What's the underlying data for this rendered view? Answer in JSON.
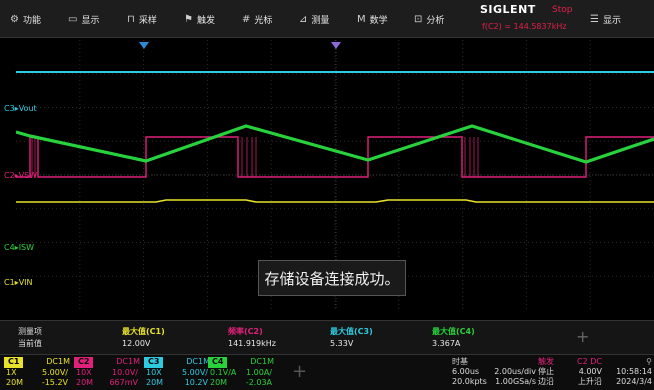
{
  "menu": [
    {
      "label": "功能",
      "icon": "gear-icon",
      "glyph": "⚙"
    },
    {
      "label": "显示",
      "icon": "display-icon",
      "glyph": "▭"
    },
    {
      "label": "采样",
      "icon": "sample-icon",
      "glyph": "⊓"
    },
    {
      "label": "触发",
      "icon": "flag-icon",
      "glyph": "⚑"
    },
    {
      "label": "光标",
      "icon": "cursor-icon",
      "glyph": "#"
    },
    {
      "label": "测量",
      "icon": "measure-icon",
      "glyph": "⊿"
    },
    {
      "label": "数学",
      "icon": "math-icon",
      "glyph": "M"
    },
    {
      "label": "分析",
      "icon": "analysis-icon",
      "glyph": "⊡"
    },
    {
      "label": "显示",
      "icon": "list-icon",
      "glyph": "☰"
    }
  ],
  "brand": {
    "name": "SIGLENT",
    "state": "Stop",
    "freq": "f(C2) = 144.5837kHz"
  },
  "channels_on_screen": [
    {
      "label": "C3▸Vout",
      "color": "#2ecbe0"
    },
    {
      "label": "C2▸VSW",
      "color": "#e0207a"
    },
    {
      "label": "C4▸ISW",
      "color": "#27d23c"
    },
    {
      "label": "C1▸VIN",
      "color": "#e8e22a"
    }
  ],
  "toast": "存储设备连接成功。",
  "measure": {
    "title": "测量项",
    "row_label": "当前值",
    "items": [
      {
        "name": "最大值(C1)",
        "value": "12.00V",
        "color": "#e8e22a"
      },
      {
        "name": "频率(C2)",
        "value": "141.919kHz",
        "color": "#e0207a"
      },
      {
        "name": "最大值(C3)",
        "value": "5.33V",
        "color": "#2ecbe0"
      },
      {
        "name": "最大值(C4)",
        "value": "3.367A",
        "color": "#27d23c"
      }
    ]
  },
  "ch_boxes": [
    {
      "num": "C1",
      "color": "#e8e22a",
      "coupling": "DC1M",
      "probe": "1X",
      "scale": "5.00V/",
      "bw": "20M",
      "offset": "-15.2V",
      "probe2": "10X"
    },
    {
      "num": "C2",
      "color": "#e0207a",
      "coupling": "DC1M",
      "probe": "10X",
      "scale": "10.0V/",
      "bw": "20M",
      "offset": "667mV",
      "probe2": "20M"
    },
    {
      "num": "C3",
      "color": "#2ecbe0",
      "coupling": "DC1M",
      "probe": "10X",
      "scale": "5.00V/",
      "bw": "20M",
      "offset": "10.2V",
      "probe2": "20M"
    },
    {
      "num": "C4",
      "color": "#27d23c",
      "coupling": "DC1M",
      "probe": "0.1V/A",
      "scale": "1.00A/",
      "bw": "20M",
      "offset": "-2.03A",
      "probe2": "20M"
    }
  ],
  "timebase": {
    "title": "时基",
    "delay": "6.00us",
    "scale": "2.00us/div",
    "points": "20.0kpts",
    "rate": "1.00GSa/s"
  },
  "trigger": {
    "title": "触发",
    "source": "C2 DC",
    "mode": "停止",
    "level": "4.00V",
    "edge_type": "边沿",
    "slope": "上升沿"
  },
  "clock": {
    "time": "10:58:14",
    "date": "2024/3/4"
  }
}
